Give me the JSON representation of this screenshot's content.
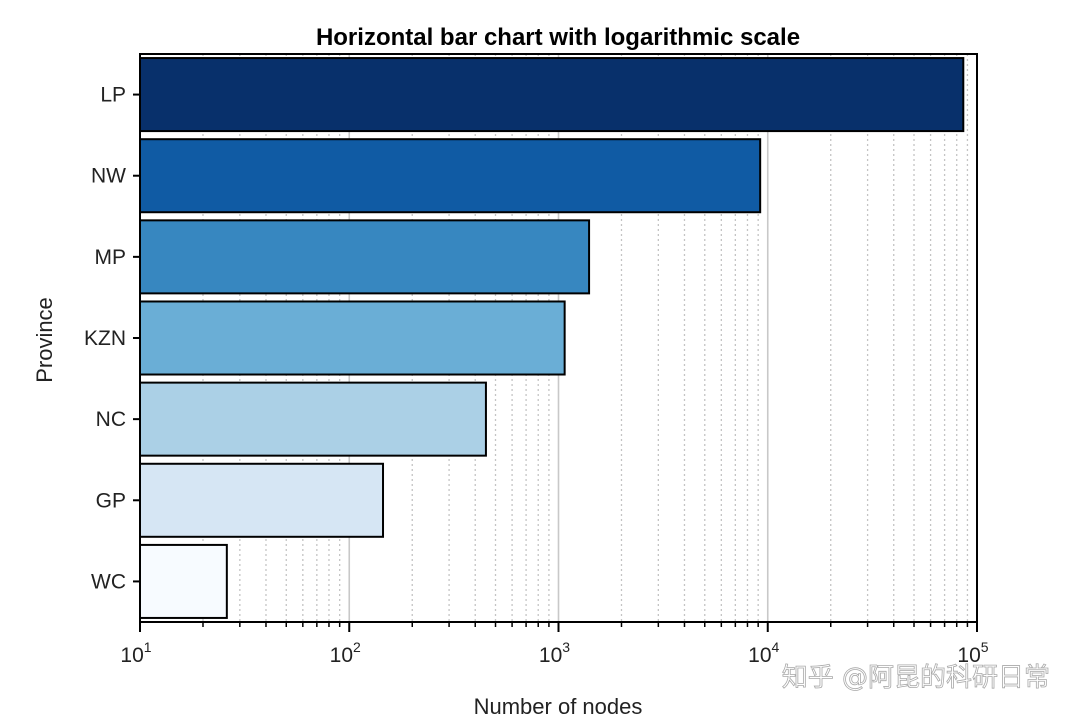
{
  "chart_data": {
    "type": "bar",
    "orientation": "horizontal",
    "title": "Horizontal bar chart with logarithmic scale",
    "xlabel": "Number of nodes",
    "ylabel": "Province",
    "xscale": "log",
    "xlim": [
      10,
      100000
    ],
    "grid": "x-major-and-minor-dotted",
    "categories": [
      "LP",
      "NW",
      "MP",
      "KZN",
      "NC",
      "GP",
      "WC"
    ],
    "values": [
      86000,
      9200,
      1400,
      1070,
      450,
      145,
      26
    ],
    "colors": [
      "#08306b",
      "#105ba4",
      "#3787c0",
      "#6aaed6",
      "#abd0e6",
      "#d6e6f4",
      "#f7fbff"
    ],
    "x_tick_labels": [
      {
        "base": "10",
        "exp": "1"
      },
      {
        "base": "10",
        "exp": "2"
      },
      {
        "base": "10",
        "exp": "3"
      },
      {
        "base": "10",
        "exp": "4"
      },
      {
        "base": "10",
        "exp": "5"
      }
    ]
  },
  "watermark": "知乎 @阿昆的科研日常"
}
